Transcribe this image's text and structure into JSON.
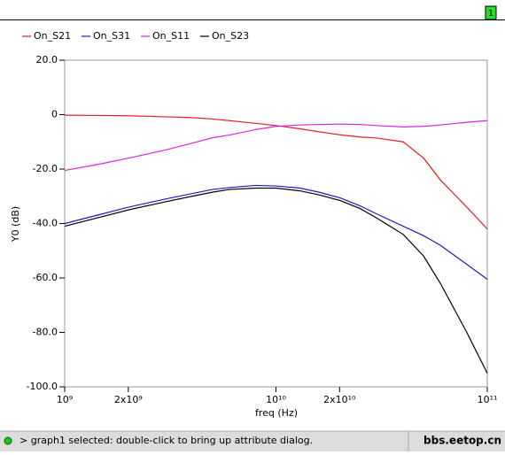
{
  "window": {
    "tab": "1"
  },
  "chart_data": {
    "type": "line",
    "xlabel": "freq (Hz)",
    "ylabel": "Y0 (dB)",
    "xscale": "log",
    "x": [
      1000000000.0,
      1500000000.0,
      2000000000.0,
      3000000000.0,
      4000000000.0,
      5000000000.0,
      6000000000.0,
      8000000000.0,
      10000000000.0,
      13000000000.0,
      16000000000.0,
      20000000000.0,
      25000000000.0,
      30000000000.0,
      40000000000.0,
      50000000000.0,
      60000000000.0,
      80000000000.0,
      100000000000.0
    ],
    "series": [
      {
        "name": "On_S21",
        "color": "#e02020",
        "values": [
          -0.2,
          -0.3,
          -0.4,
          -0.8,
          -1.1,
          -1.6,
          -2.2,
          -3.2,
          -4.0,
          -5.2,
          -6.3,
          -7.4,
          -8.2,
          -8.6,
          -10.0,
          -16,
          -24,
          -34,
          -42
        ]
      },
      {
        "name": "On_S31",
        "color": "#1a1acc",
        "values": [
          -40,
          -36.5,
          -34,
          -31,
          -29,
          -27.5,
          -26.8,
          -26,
          -26.2,
          -27,
          -28.5,
          -30.5,
          -33.5,
          -36.5,
          -41,
          -44.5,
          -48,
          -55,
          -60.5
        ]
      },
      {
        "name": "On_S11",
        "color": "#e020e0",
        "values": [
          -20.5,
          -18,
          -16,
          -13,
          -10.5,
          -8.5,
          -7.5,
          -5.5,
          -4.3,
          -3.8,
          -3.6,
          -3.5,
          -3.6,
          -4,
          -4.5,
          -4.3,
          -3.8,
          -2.8,
          -2.2
        ]
      },
      {
        "name": "On_S23",
        "color": "#000000",
        "values": [
          -41,
          -37.5,
          -35,
          -32,
          -30,
          -28.5,
          -27.5,
          -27,
          -27,
          -28,
          -29.5,
          -31.5,
          -34.5,
          -38,
          -44,
          -52,
          -62,
          -80,
          -95
        ]
      }
    ],
    "xlim": [
      1000000000.0,
      100000000000.0
    ],
    "xticks": [
      {
        "value": 1000000000.0,
        "label": "10⁹"
      },
      {
        "value": 2000000000.0,
        "label": "2x10⁹"
      },
      {
        "value": 10000000000.0,
        "label": "10¹⁰"
      },
      {
        "value": 20000000000.0,
        "label": "2x10¹⁰"
      },
      {
        "value": 100000000000.0,
        "label": "10¹¹"
      }
    ],
    "ylim": [
      -100,
      20
    ],
    "yticks": [
      {
        "value": 20,
        "label": "20.0"
      },
      0,
      {
        "value": -20,
        "label": "-20.0"
      },
      {
        "value": -40,
        "label": "-40.0"
      },
      {
        "value": -60,
        "label": "-60.0"
      },
      {
        "value": -80,
        "label": "-80.0"
      },
      {
        "value": -100,
        "label": "-100.0"
      }
    ]
  },
  "status_bar": {
    "message": "> graph1 selected: double-click to bring up attribute dialog.",
    "watermark": "bbs.eetop.cn"
  }
}
